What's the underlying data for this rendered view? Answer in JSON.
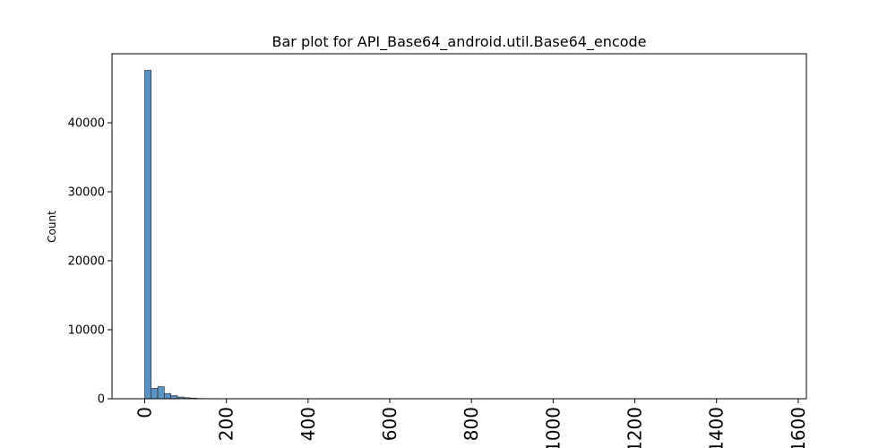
{
  "chart_data": {
    "type": "bar",
    "title": "Bar plot for API_Base64_android.util.Base64_encode",
    "xlabel": "",
    "ylabel": "Count",
    "xlim": [
      -80,
      1620
    ],
    "ylim": [
      0,
      50000
    ],
    "x_ticks": [
      0,
      200,
      400,
      600,
      800,
      1000,
      1200,
      1400,
      1600
    ],
    "x_tick_labels": [
      "0",
      "200",
      "400",
      "600",
      "800",
      "1000",
      "1200",
      "1400",
      "1600"
    ],
    "y_ticks": [
      0,
      10000,
      20000,
      30000,
      40000
    ],
    "y_tick_labels": [
      "0",
      "10000",
      "20000",
      "30000",
      "40000"
    ],
    "bin_width": 16,
    "bin_starts": [
      0,
      16,
      32,
      48,
      64,
      80,
      96,
      112,
      128,
      144
    ],
    "values": [
      47600,
      1500,
      1750,
      750,
      450,
      250,
      150,
      80,
      40,
      20
    ],
    "grid": false,
    "bar_color": "#5b93c4",
    "edge_color": "#1f1f1f"
  }
}
